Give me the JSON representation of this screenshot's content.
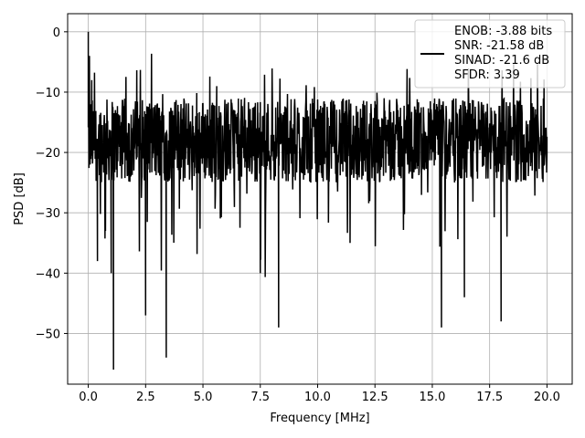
{
  "chart_data": {
    "type": "line",
    "title": "",
    "xlabel": "Frequency [MHz]",
    "ylabel": "PSD [dB]",
    "xlim": [
      -0.9,
      21.1
    ],
    "ylim": [
      -58.4,
      3.0
    ],
    "xticks": [
      0.0,
      2.5,
      5.0,
      7.5,
      10.0,
      12.5,
      15.0,
      17.5,
      20.0
    ],
    "xtick_labels": [
      "0.0",
      "2.5",
      "5.0",
      "7.5",
      "10.0",
      "12.5",
      "15.0",
      "17.5",
      "20.0"
    ],
    "yticks": [
      0,
      -10,
      -20,
      -30,
      -40,
      -50
    ],
    "ytick_labels": [
      "0",
      "−10",
      "−20",
      "−30",
      "−40",
      "−50"
    ],
    "grid": true,
    "legend_position": "top-right",
    "series": [
      {
        "color": "#000000",
        "description_points": {
          "x": [
            0.0,
            0.02,
            0.05,
            0.08,
            0.1,
            0.15,
            0.2,
            0.3,
            0.4,
            0.5,
            0.75,
            1.0,
            1.1,
            1.25,
            1.5,
            2.0,
            2.5,
            3.0,
            3.4,
            3.5,
            3.75,
            4.0,
            5.0,
            5.6,
            6.0,
            6.6,
            7.5,
            7.8,
            8.0,
            8.3,
            8.5,
            10.0,
            11.0,
            12.0,
            12.5,
            13.0,
            14.0,
            15.0,
            15.4,
            16.0,
            16.4,
            17.0,
            17.5,
            18.0,
            18.4,
            19.0,
            19.5,
            20.0
          ],
          "y": [
            0.0,
            -14.0,
            -4.0,
            -22.0,
            -12.0,
            -8.0,
            -20.0,
            -15.0,
            -38.0,
            -18.0,
            -33.0,
            -40.0,
            -56.0,
            -14.0,
            -22.0,
            -20.0,
            -47.0,
            -18.0,
            -54.0,
            -18.0,
            -14.0,
            -20.0,
            -19.0,
            -9.0,
            -17.0,
            -17.0,
            -40.0,
            -18.0,
            -17.0,
            -49.0,
            -18.0,
            -19.0,
            -16.0,
            -17.0,
            -17.0,
            -19.0,
            -17.0,
            -18.0,
            -49.0,
            -18.0,
            -44.0,
            -17.0,
            -18.0,
            -48.0,
            -17.0,
            -17.0,
            -14.0,
            -20.0
          ]
        },
        "noise_floor_db": -18.0,
        "noise_spread_db": 7.0
      }
    ],
    "legend_text": [
      "ENOB: -3.88 bits",
      "SNR: -21.58 dB",
      "SINAD: -21.6 dB",
      "SFDR: 3.39"
    ]
  },
  "colors": {
    "line": "#000000",
    "grid": "#b0b0b0",
    "axes": "#000000",
    "background": "#ffffff"
  }
}
